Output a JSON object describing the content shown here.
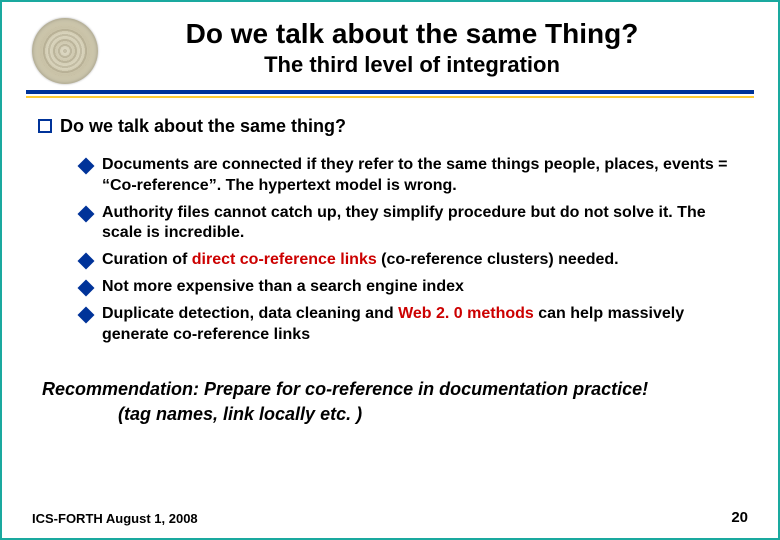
{
  "colors": {
    "border": "#1aa99f",
    "blue": "#003399",
    "yellow": "#ffcc33",
    "red": "#cc0000",
    "text": "#000000",
    "background": "#ffffff"
  },
  "typography": {
    "family": "Arial",
    "title_fontsize": 28,
    "subtitle_fontsize": 22,
    "section_fontsize": 18,
    "bullet_fontsize": 16,
    "recommendation_fontsize": 18,
    "footer_fontsize": 13,
    "page_number_fontsize": 15
  },
  "header": {
    "title": "Do we talk about the same Thing?",
    "subtitle": "The third level of integration"
  },
  "section": {
    "heading": "Do we talk about the same thing?"
  },
  "bullets": [
    {
      "runs": [
        {
          "text": " Documents are connected if they refer to the same things people, places, events = “Co-reference”. The hypertext model is wrong."
        }
      ]
    },
    {
      "runs": [
        {
          "text": " Authority files cannot catch up, they simplify procedure but do not solve it. The scale is incredible."
        }
      ]
    },
    {
      "runs": [
        {
          "text": " Curation of "
        },
        {
          "text": "direct co-reference links",
          "red": true
        },
        {
          "text": " (co-reference clusters) needed."
        }
      ]
    },
    {
      "runs": [
        {
          "text": " Not more expensive than a search engine index"
        }
      ]
    },
    {
      "runs": [
        {
          "text": " Duplicate detection, data cleaning and "
        },
        {
          "text": "Web 2. 0 methods",
          "red": true
        },
        {
          "text": " can help massively generate co-reference links"
        }
      ]
    }
  ],
  "recommendation": {
    "line1": "Recommendation: Prepare for co-reference in documentation practice!",
    "line2": "(tag names, link locally etc. )"
  },
  "footer": {
    "left": "ICS-FORTH  August 1, 2008",
    "page_number": "20"
  }
}
